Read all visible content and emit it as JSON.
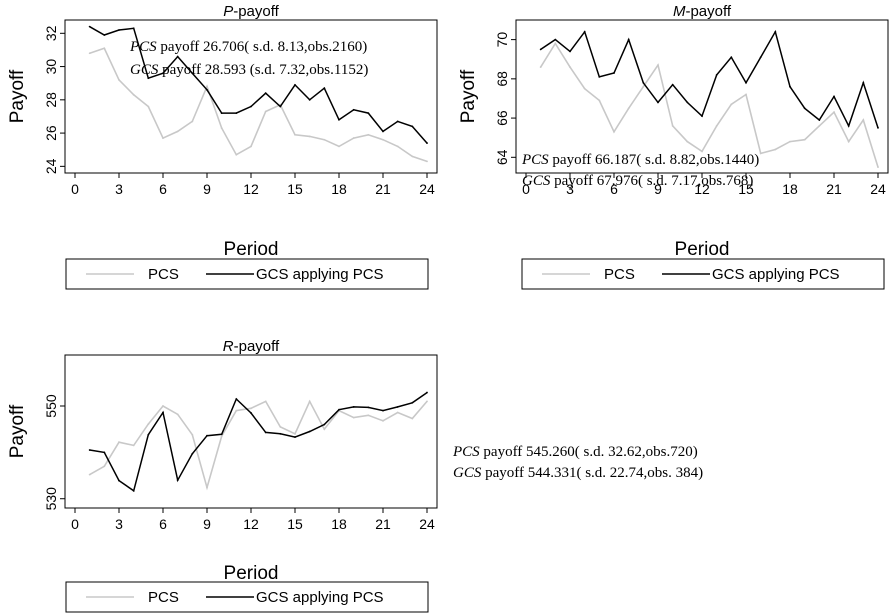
{
  "chart_data": [
    {
      "type": "line",
      "title_var": "P",
      "title_rest": "-payoff",
      "xlabel": "Period",
      "ylabel": "Payoff",
      "x": [
        1,
        2,
        3,
        4,
        5,
        6,
        7,
        8,
        9,
        10,
        11,
        12,
        13,
        14,
        15,
        16,
        17,
        18,
        19,
        20,
        21,
        22,
        23,
        24
      ],
      "xticks": [
        0,
        3,
        6,
        9,
        12,
        15,
        18,
        21,
        24
      ],
      "yticks": [
        24,
        26,
        28,
        30,
        32
      ],
      "xlim": [
        0,
        24
      ],
      "ylim": [
        23.6,
        32.8
      ],
      "series": [
        {
          "name": "PCS",
          "color": "#c8c8c8",
          "values": [
            30.8,
            31.1,
            29.2,
            28.3,
            27.6,
            25.7,
            26.1,
            26.7,
            28.8,
            26.3,
            24.7,
            25.2,
            27.3,
            27.7,
            25.9,
            25.8,
            25.6,
            25.2,
            25.7,
            25.9,
            25.6,
            25.2,
            24.6,
            24.3
          ]
        },
        {
          "name": "GCS applying PCS",
          "color": "#000000",
          "values": [
            32.4,
            31.9,
            32.2,
            32.3,
            29.3,
            29.6,
            30.6,
            29.6,
            28.6,
            27.2,
            27.2,
            27.6,
            28.4,
            27.6,
            28.9,
            28.0,
            28.7,
            26.8,
            27.4,
            27.2,
            26.1,
            26.7,
            26.4,
            25.4
          ]
        }
      ],
      "annotations": [
        {
          "var": "PCS",
          "text": " payoff 26.706( s.d. 8.13,obs.2160)"
        },
        {
          "var": "GCS",
          "text": " payoff  28.593 (s.d. 7.32,obs.1152)"
        }
      ],
      "legend": [
        "PCS",
        "GCS applying PCS"
      ]
    },
    {
      "type": "line",
      "title_var": "M",
      "title_rest": "-payoff",
      "xlabel": "Period",
      "ylabel": "Payoff",
      "x": [
        1,
        2,
        3,
        4,
        5,
        6,
        7,
        8,
        9,
        10,
        11,
        12,
        13,
        14,
        15,
        16,
        17,
        18,
        19,
        20,
        21,
        22,
        23,
        24
      ],
      "xticks": [
        0,
        3,
        6,
        9,
        12,
        15,
        18,
        21,
        24
      ],
      "yticks": [
        64,
        66,
        68,
        70
      ],
      "xlim": [
        0,
        24
      ],
      "ylim": [
        63.2,
        71.0
      ],
      "series": [
        {
          "name": "PCS",
          "color": "#c8c8c8",
          "values": [
            68.6,
            69.8,
            68.6,
            67.5,
            66.9,
            65.3,
            66.5,
            67.6,
            68.7,
            65.6,
            64.8,
            64.3,
            65.6,
            66.7,
            67.2,
            64.2,
            64.4,
            64.8,
            64.9,
            65.6,
            66.3,
            64.8,
            65.9,
            63.5
          ]
        },
        {
          "name": "GCS applying PCS",
          "color": "#000000",
          "values": [
            69.5,
            70.0,
            69.4,
            70.4,
            68.1,
            68.3,
            70.0,
            67.8,
            66.8,
            67.7,
            66.8,
            66.1,
            68.2,
            69.1,
            67.8,
            69.1,
            70.4,
            67.6,
            66.5,
            65.9,
            67.1,
            65.6,
            67.8,
            65.5
          ]
        }
      ],
      "annotations": [
        {
          "var": "PCS",
          "text": " payoff 66.187( s.d. 8.82,obs.1440)"
        },
        {
          "var": "GCS",
          "text": " payoff 67.976( s.d. 7.17,obs.768)"
        }
      ],
      "legend": [
        "PCS",
        "GCS applying PCS"
      ]
    },
    {
      "type": "line",
      "title_var": "R",
      "title_rest": "-payoff",
      "xlabel": "Period",
      "ylabel": "Payoff",
      "x": [
        1,
        2,
        3,
        4,
        5,
        6,
        7,
        8,
        9,
        10,
        11,
        12,
        13,
        14,
        15,
        16,
        17,
        18,
        19,
        20,
        21,
        22,
        23,
        24
      ],
      "xticks": [
        0,
        3,
        6,
        9,
        12,
        15,
        18,
        21,
        24
      ],
      "yticks": [
        530,
        550
      ],
      "xlim": [
        0,
        24
      ],
      "ylim": [
        528,
        561
      ],
      "series": [
        {
          "name": "PCS",
          "color": "#c8c8c8",
          "values": [
            535.2,
            537.0,
            542.2,
            541.5,
            546.1,
            550.0,
            548.2,
            543.8,
            532.4,
            543.5,
            549.0,
            549.5,
            551.0,
            545.5,
            544.0,
            551.0,
            545.0,
            549.0,
            547.5,
            548.0,
            546.8,
            548.6,
            547.3,
            551.0
          ]
        },
        {
          "name": "GCS applying PCS",
          "color": "#000000",
          "values": [
            540.5,
            540.0,
            533.9,
            531.7,
            543.8,
            548.6,
            534.0,
            539.7,
            543.6,
            543.9,
            551.5,
            548.5,
            544.3,
            544.0,
            543.3,
            544.5,
            546.0,
            549.2,
            549.8,
            549.7,
            549.0,
            549.8,
            550.7,
            552.9
          ]
        }
      ],
      "annotations": [
        {
          "var": "PCS",
          "text": " payoff 545.260( s.d. 32.62,obs.720)"
        },
        {
          "var": "GCS",
          "text": " payoff 544.331( s.d. 22.74,obs.  384)"
        }
      ],
      "legend": [
        "PCS",
        "GCS applying PCS"
      ]
    }
  ]
}
